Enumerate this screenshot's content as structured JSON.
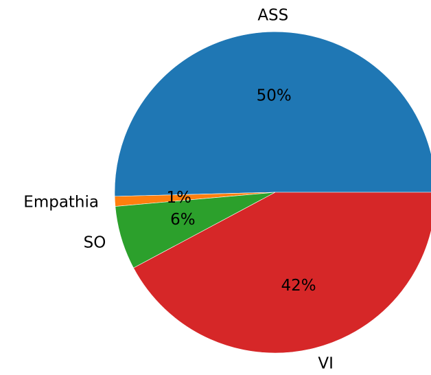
{
  "chart_data": {
    "type": "pie",
    "title": "",
    "start_angle_deg": 0,
    "direction": "counterclockwise",
    "slices": [
      {
        "label": "ASS",
        "value": 50.4,
        "pct_label": "50%",
        "color": "#1f77b4"
      },
      {
        "label": "Empathia",
        "value": 1.0,
        "pct_label": "1%",
        "color": "#ff7f0e"
      },
      {
        "label": "SO",
        "value": 6.4,
        "pct_label": "6%",
        "color": "#2ca02c"
      },
      {
        "label": "VI",
        "value": 42.2,
        "pct_label": "42%",
        "color": "#d62728"
      }
    ]
  }
}
